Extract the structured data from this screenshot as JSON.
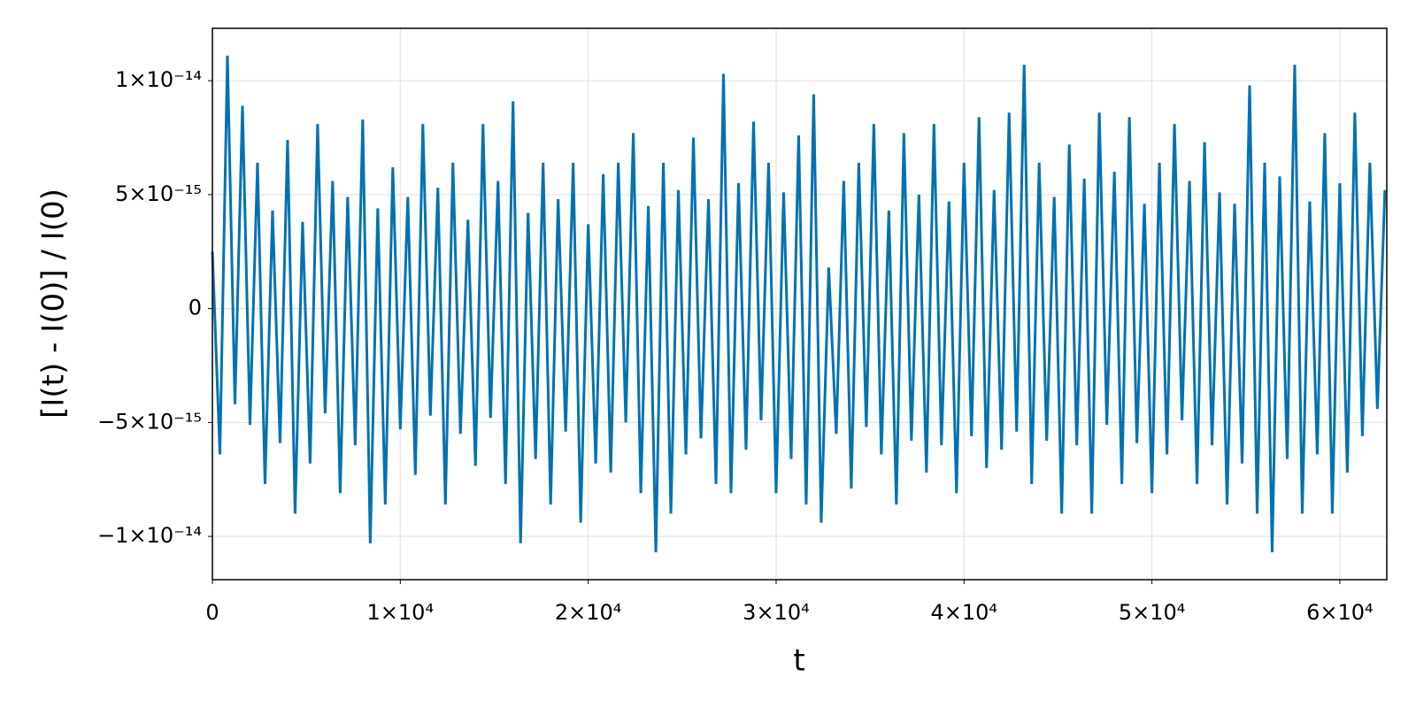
{
  "chart_data": {
    "type": "line",
    "xlabel": "t",
    "ylabel": "[I(t) - I(0)] / I(0)",
    "color": "#0072b2",
    "grid": true,
    "xlim": [
      0,
      62500
    ],
    "ylim": [
      -1.19e-14,
      1.23e-14
    ],
    "xticks": [
      0,
      {
        "value": 10000,
        "label": "1×10⁴"
      },
      {
        "value": 20000,
        "label": "2×10⁴"
      },
      {
        "value": 30000,
        "label": "3×10⁴"
      },
      {
        "value": 40000,
        "label": "4×10⁴"
      },
      {
        "value": 50000,
        "label": "5×10⁴"
      },
      {
        "value": 60000,
        "label": "6×10⁴"
      }
    ],
    "yticks": [
      {
        "value": -1e-14,
        "label": "−1×10⁻¹⁴"
      },
      {
        "value": -5e-15,
        "label": "−5×10⁻¹⁵"
      },
      0,
      {
        "value": 5e-15,
        "label": "5×10⁻¹⁵"
      },
      {
        "value": 1e-14,
        "label": "1×10⁻¹⁴"
      }
    ],
    "x": [
      0,
      400,
      800,
      1200,
      1600,
      2000,
      2400,
      2800,
      3200,
      3600,
      4000,
      4400,
      4800,
      5200,
      5600,
      6000,
      6400,
      6800,
      7200,
      7600,
      8000,
      8400,
      8800,
      9200,
      9600,
      10000,
      10400,
      10800,
      11200,
      11600,
      12000,
      12400,
      12800,
      13200,
      13600,
      14000,
      14400,
      14800,
      15200,
      15600,
      16000,
      16400,
      16800,
      17200,
      17600,
      18000,
      18400,
      18800,
      19200,
      19600,
      20000,
      20400,
      20800,
      21200,
      21600,
      22000,
      22400,
      22800,
      23200,
      23600,
      24000,
      24400,
      24800,
      25200,
      25600,
      26000,
      26400,
      26800,
      27200,
      27600,
      28000,
      28400,
      28800,
      29200,
      29600,
      30000,
      30400,
      30800,
      31200,
      31600,
      32000,
      32400,
      32800,
      33200,
      33600,
      34000,
      34400,
      34800,
      35200,
      35600,
      36000,
      36400,
      36800,
      37200,
      37600,
      38000,
      38400,
      38800,
      39200,
      39600,
      40000,
      40400,
      40800,
      41200,
      41600,
      42000,
      42400,
      42800,
      43200,
      43600,
      44000,
      44400,
      44800,
      45200,
      45600,
      46000,
      46400,
      46800,
      47200,
      47600,
      48000,
      48400,
      48800,
      49200,
      49600,
      50000,
      50400,
      50800,
      51200,
      51600,
      52000,
      52400,
      52800,
      53200,
      53600,
      54000,
      54400,
      54800,
      55200,
      55600,
      56000,
      56400,
      56800,
      57200,
      57600,
      58000,
      58400,
      58800,
      59200,
      59600,
      60000,
      60400,
      60800,
      61200,
      61600,
      62000,
      62400
    ],
    "values": [
      2.5e-15,
      -6.4e-15,
      1.11e-14,
      -4.2e-15,
      8.9e-15,
      -5.1e-15,
      6.4e-15,
      -7.7e-15,
      4.3e-15,
      -5.9e-15,
      7.4e-15,
      -9e-15,
      3.8e-15,
      -6.8e-15,
      8.1e-15,
      -4.6e-15,
      5.6e-15,
      -8.1e-15,
      4.9e-15,
      -6e-15,
      8.3e-15,
      -1.03e-14,
      4.4e-15,
      -8.6e-15,
      6.2e-15,
      -5.3e-15,
      4.9e-15,
      -7.3e-15,
      8.1e-15,
      -4.7e-15,
      5.3e-15,
      -8.6e-15,
      6.4e-15,
      -5.5e-15,
      3.9e-15,
      -6.9e-15,
      8.1e-15,
      -4.8e-15,
      5.6e-15,
      -7.7e-15,
      9.1e-15,
      -1.03e-14,
      4.2e-15,
      -6.6e-15,
      6.4e-15,
      -8.6e-15,
      4.8e-15,
      -5.4e-15,
      6.4e-15,
      -9.4e-15,
      3.7e-15,
      -6.8e-15,
      5.9e-15,
      -7.2e-15,
      6.4e-15,
      -5e-15,
      7.7e-15,
      -8.1e-15,
      4.5e-15,
      -1.07e-14,
      6.4e-15,
      -9e-15,
      5.2e-15,
      -6.4e-15,
      7.5e-15,
      -5.7e-15,
      4.8e-15,
      -7.7e-15,
      1.03e-14,
      -8.1e-15,
      5.5e-15,
      -6.2e-15,
      8.2e-15,
      -4.9e-15,
      6.4e-15,
      -8.1e-15,
      5.1e-15,
      -6.6e-15,
      7.6e-15,
      -8.6e-15,
      9.4e-15,
      -9.4e-15,
      1.8e-15,
      -5.5e-15,
      5.6e-15,
      -7.9e-15,
      6.4e-15,
      -5.2e-15,
      8.1e-15,
      -6.4e-15,
      4.3e-15,
      -8.6e-15,
      7.7e-15,
      -5.8e-15,
      5e-15,
      -7.2e-15,
      8.1e-15,
      -6e-15,
      4.7e-15,
      -8.1e-15,
      6.4e-15,
      -5.6e-15,
      8.4e-15,
      -7e-15,
      5.2e-15,
      -6.2e-15,
      8.6e-15,
      -5.4e-15,
      1.07e-14,
      -7.7e-15,
      6.4e-15,
      -5.8e-15,
      4.9e-15,
      -9e-15,
      7.2e-15,
      -6e-15,
      5.7e-15,
      -9e-15,
      8.6e-15,
      -5.1e-15,
      6e-15,
      -7.7e-15,
      8.4e-15,
      -5.9e-15,
      4.6e-15,
      -8.1e-15,
      6.4e-15,
      -6.4e-15,
      8.1e-15,
      -4.9e-15,
      5.6e-15,
      -7.7e-15,
      7.3e-15,
      -6e-15,
      5.1e-15,
      -8.6e-15,
      4.6e-15,
      -6.8e-15,
      9.8e-15,
      -9e-15,
      6.4e-15,
      -1.07e-14,
      5.8e-15,
      -6.6e-15,
      1.07e-14,
      -9e-15,
      4.7e-15,
      -6.4e-15,
      7.7e-15,
      -9e-15,
      5.5e-15,
      -7.2e-15,
      8.6e-15,
      -5.6e-15,
      6.4e-15,
      -4.4e-15,
      5.2e-15
    ]
  }
}
